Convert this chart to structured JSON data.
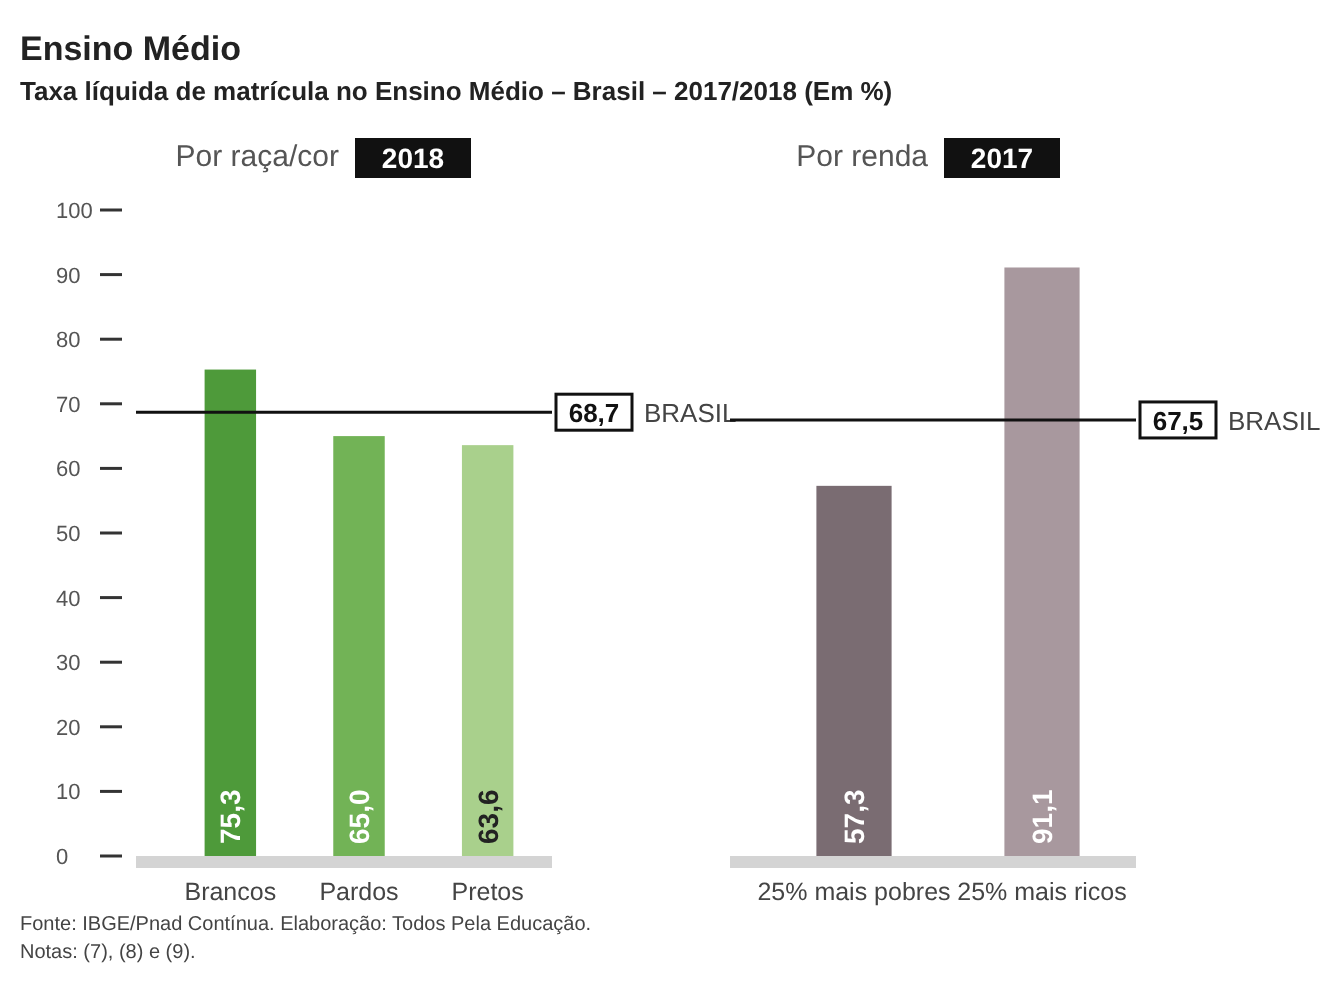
{
  "chart_data": [
    {
      "type": "bar",
      "title": "Por raça/cor",
      "subtitle": "2018",
      "categories": [
        "Brancos",
        "Pardos",
        "Pretos"
      ],
      "values": [
        75.3,
        65.0,
        63.6
      ],
      "colors": [
        "#4e9a3a",
        "#72b356",
        "#a9d08c"
      ],
      "value_labels": [
        "75,3",
        "65,0",
        "63,6"
      ],
      "ylim": [
        0,
        100
      ],
      "yticks": [
        0,
        10,
        20,
        30,
        40,
        50,
        60,
        70,
        80,
        90,
        100
      ],
      "grid": false,
      "ref_lines": [
        {
          "axis": "y",
          "value": 68.7,
          "label": "68,7"
        }
      ],
      "annotations": [
        "Ensino Médio",
        "Taxa líquida de matrícula no Ensino Médio – Brasil – 2017/2018 (Em %)",
        "BRASIL",
        "Fonte: IBGE/Pnad Contínua. Elaboração: Todos Pela Educação.",
        "Notas: (7), (8) e (9)."
      ]
    },
    {
      "type": "bar",
      "title": "Por renda",
      "subtitle": "2017",
      "categories": [
        "25% mais pobres",
        "25% mais ricos"
      ],
      "values": [
        57.3,
        91.1
      ],
      "colors": [
        "#7a6c72",
        "#a8989e"
      ],
      "value_labels": [
        "57,3",
        "91,1"
      ],
      "ylim": [
        0,
        100
      ],
      "tick_labels": "x",
      "ref_lines": [
        {
          "axis": "y",
          "value": 67.5,
          "label": "67,5"
        }
      ],
      "annotations": [
        "BRASIL"
      ]
    }
  ]
}
